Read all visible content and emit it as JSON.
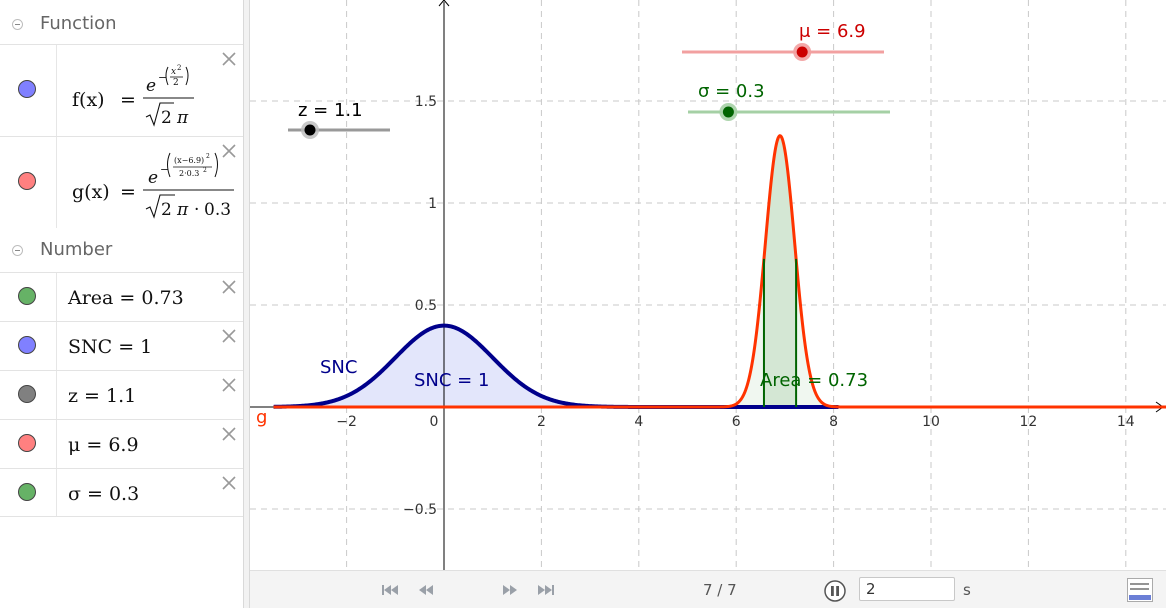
{
  "algebra": {
    "groups": {
      "function": "Function",
      "number": "Number"
    },
    "functions": [
      {
        "name": "f(x)",
        "numerator_base": "e",
        "exponent_text": "x2 2",
        "denominator": "2 π",
        "color": "#8080ff"
      },
      {
        "name": "g(x)",
        "numerator_base": "e",
        "exponent_text": "(x−6.9)2 2·0.32",
        "denominator": "2 π · 0.3",
        "color": "#ff8080"
      }
    ],
    "numbers": [
      {
        "label": "Area = 0.73",
        "color": "#66b266"
      },
      {
        "label": "SNC = 1",
        "color": "#8080ff"
      },
      {
        "label": "z = 1.1",
        "color": "#808080"
      },
      {
        "label": "μ = 6.9",
        "color": "#ff8080"
      },
      {
        "label": "σ = 0.3",
        "color": "#66b266"
      }
    ]
  },
  "graph": {
    "x_ticks": [
      "−2",
      "0",
      "2",
      "4",
      "6",
      "8",
      "10",
      "12",
      "14"
    ],
    "y_ticks": [
      "1.5",
      "1",
      "0.5",
      "−0.5"
    ],
    "labels": {
      "snc_curve": "SNC",
      "snc_area": "SNC = 1",
      "area": "Area = 0.73",
      "g": "g"
    },
    "sliders": {
      "z": {
        "label": "z = 1.1",
        "value": 1.1,
        "min": -5,
        "max": 5,
        "color": "#000000"
      },
      "mu": {
        "label": "μ = 6.9",
        "value": 6.9,
        "min": -5,
        "max": 15,
        "color": "#cc0000"
      },
      "sigma": {
        "label": "σ = 0.3",
        "value": 0.3,
        "min": 0.1,
        "max": 5,
        "color": "#006400"
      }
    },
    "colors": {
      "snc": "#00008b",
      "snc_fill": "#e3e6fb",
      "g": "#ff3300",
      "area": "#006400",
      "area_fill": "#d4e7d4"
    }
  },
  "toolbar": {
    "counter": "7 / 7",
    "speed": "2",
    "speed_unit": "s"
  }
}
